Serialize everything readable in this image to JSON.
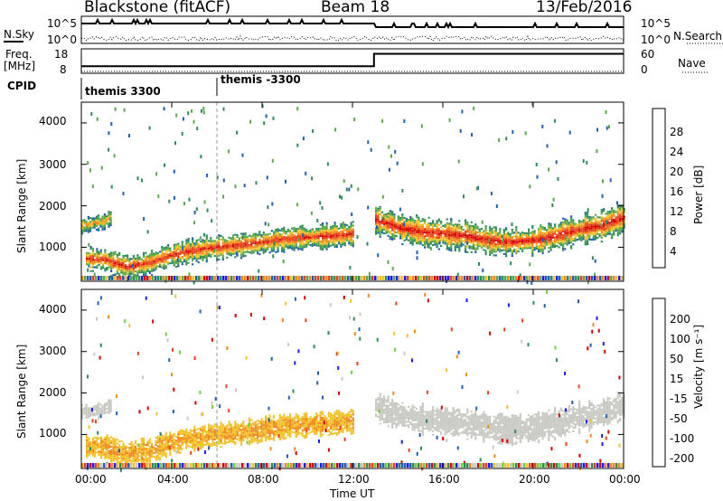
{
  "header": {
    "station": "Blackstone (fitACF)",
    "beam": "Beam 18",
    "date": "13/Feb/2016"
  },
  "summary_panels": {
    "nsky": {
      "label": "N.Sky",
      "top_tick": "10^5",
      "bottom_tick": "10^0"
    },
    "nsearch": {
      "label": "N.Search",
      "top_tick": "10^5",
      "bottom_tick": "10^0"
    },
    "freq": {
      "label_line1": "Freq.",
      "label_line2": "[MHz]",
      "top_tick": "18",
      "bottom_tick": "8"
    },
    "nave": {
      "label": "Nave",
      "top_tick": "60",
      "bottom_tick": "0"
    },
    "cpid": {
      "label": "CPID",
      "segments": [
        {
          "name": "themis 3300",
          "start_hour": 0.0
        },
        {
          "name": "themis -3300",
          "start_hour": 6.0
        }
      ]
    }
  },
  "time_axis": {
    "label": "Time UT",
    "ticks": [
      "00:00",
      "04:00",
      "08:00",
      "12:00",
      "16:00",
      "20:00",
      "00:00"
    ],
    "tick_hours": [
      0,
      4,
      8,
      12,
      16,
      20,
      24
    ]
  },
  "range_axis": {
    "label": "Slant Range [km]",
    "ticks": [
      "1000",
      "2000",
      "3000",
      "4000"
    ],
    "tick_values": [
      1000,
      2000,
      3000,
      4000
    ],
    "range": [
      180,
      4500
    ]
  },
  "power_colorbar": {
    "label": "Power [dB]",
    "tick_labels": [
      "4",
      "8",
      "12",
      "16",
      "20",
      "24",
      "28"
    ],
    "tick_values": [
      4,
      8,
      12,
      16,
      20,
      24,
      28
    ],
    "range": [
      0,
      32
    ],
    "colors": [
      "#1a1aff",
      "#1f5fb4",
      "#2e8b57",
      "#5aa84a",
      "#f2c22b",
      "#f08a1c",
      "#e8421a",
      "#d40000"
    ]
  },
  "velocity_colorbar": {
    "label": "Velocity [m s⁻¹]",
    "tick_labels": [
      "200",
      "100",
      "50",
      "15",
      "-15",
      "-50",
      "-100",
      "-200"
    ],
    "colors": [
      "#1a1aff",
      "#1f5fb4",
      "#2e8b57",
      "#6fcf3c",
      "#c9c9c3",
      "#f2c22b",
      "#f08a1c",
      "#e8421a",
      "#d40000"
    ]
  },
  "chart_data": {
    "type": "heatmap",
    "title": "Blackstone (fitACF)  Beam 18  13/Feb/2016",
    "xlabel": "Time UT",
    "ylabel": "Slant Range [km]",
    "xlim_hours": [
      0,
      24
    ],
    "ylim_km": [
      180,
      4500
    ],
    "frequency_mhz": [
      {
        "start_hour": 0.0,
        "end_hour": 12.95,
        "value": 10.5
      },
      {
        "start_hour": 12.95,
        "end_hour": 24.0,
        "value": 16.5
      }
    ],
    "scatter_bands": [
      {
        "name": "main_backscatter_early",
        "points": [
          [
            0.0,
            1500
          ],
          [
            0.5,
            1560
          ],
          [
            1.0,
            1600
          ],
          [
            1.3,
            1700
          ]
        ],
        "half_width_km": 150,
        "power_db": 18,
        "velocity": 0
      },
      {
        "name": "ground_scatter_dawn",
        "points": [
          [
            0.2,
            700
          ],
          [
            1.0,
            680
          ],
          [
            2.0,
            500
          ],
          [
            3.0,
            600
          ],
          [
            4.0,
            800
          ],
          [
            5.5,
            950
          ],
          [
            6.5,
            1000
          ],
          [
            8.0,
            1100
          ],
          [
            9.0,
            1180
          ],
          [
            10.0,
            1220
          ],
          [
            11.0,
            1250
          ],
          [
            12.0,
            1300
          ]
        ],
        "half_width_km": 250,
        "power_db": 24,
        "velocity": -60
      },
      {
        "name": "main_backscatter_late",
        "points": [
          [
            13.0,
            1650
          ],
          [
            14.0,
            1450
          ],
          [
            15.0,
            1350
          ],
          [
            16.0,
            1300
          ],
          [
            17.0,
            1250
          ],
          [
            18.0,
            1150
          ],
          [
            19.0,
            1100
          ],
          [
            20.0,
            1150
          ],
          [
            21.0,
            1250
          ],
          [
            22.0,
            1400
          ],
          [
            23.0,
            1500
          ],
          [
            24.0,
            1700
          ]
        ],
        "half_width_km": 300,
        "power_db": 25,
        "velocity": 0
      }
    ]
  }
}
